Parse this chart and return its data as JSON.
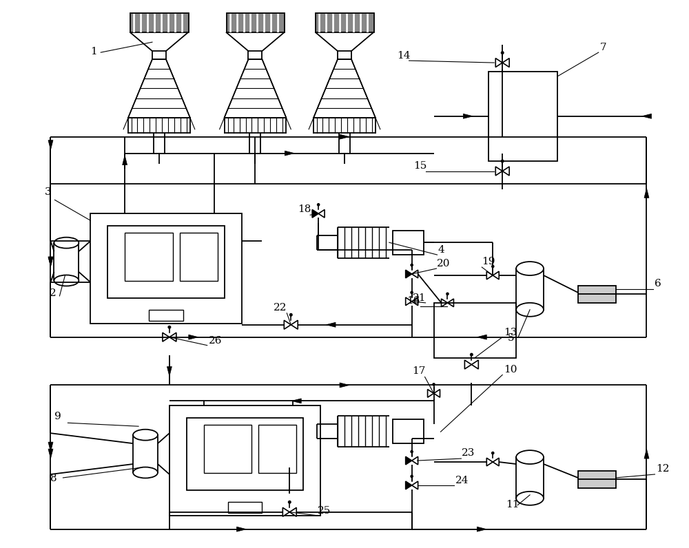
{
  "bg_color": "#ffffff",
  "line_color": "#000000",
  "lw": 1.3,
  "fig_w": 10.0,
  "fig_h": 7.96,
  "dpi": 100
}
